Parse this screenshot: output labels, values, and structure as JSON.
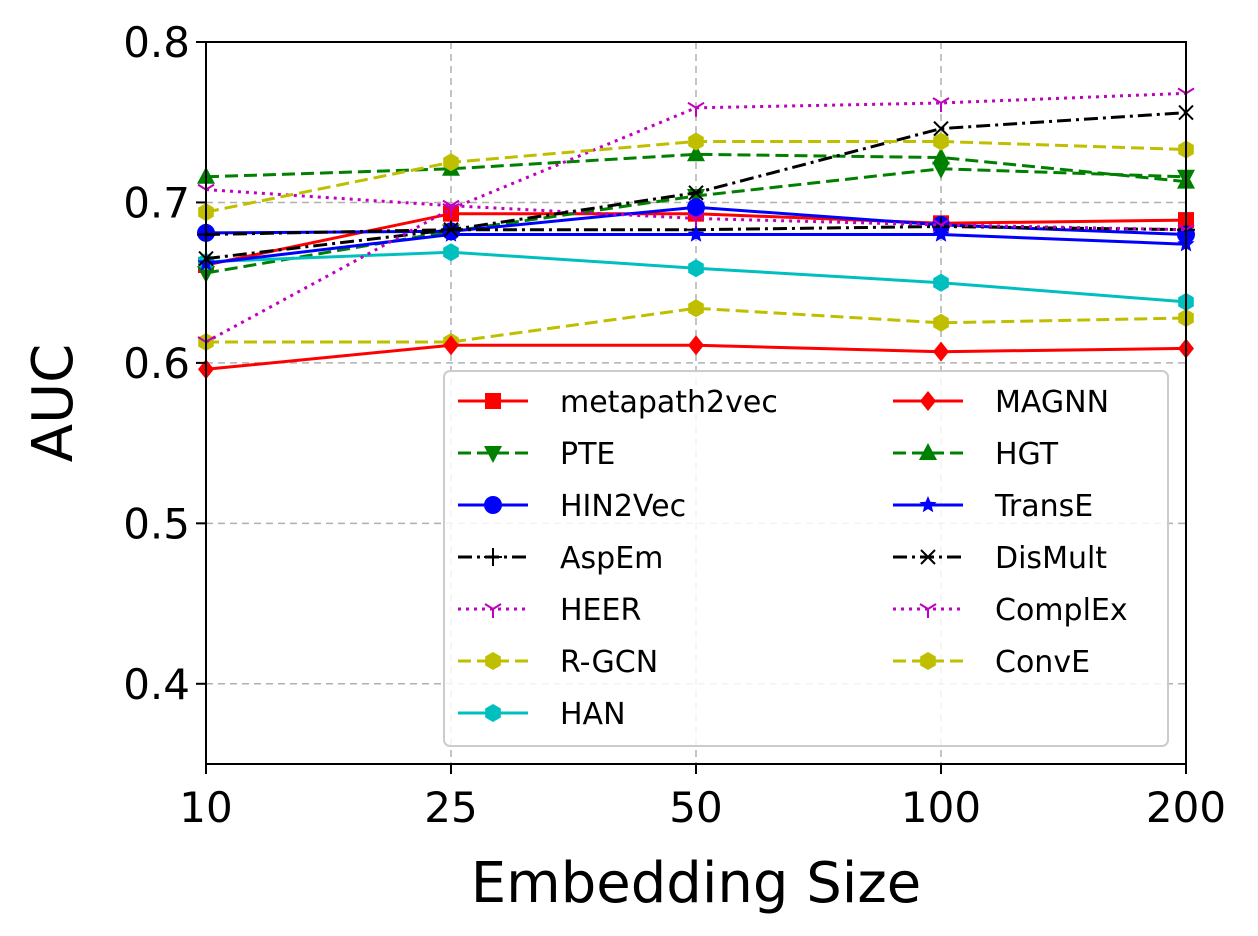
{
  "chart_data": {
    "type": "line",
    "title": "",
    "xlabel": "Embedding Size",
    "ylabel": "AUC",
    "categories": [
      "10",
      "25",
      "50",
      "100",
      "200"
    ],
    "ylim": [
      0.35,
      0.8
    ],
    "yticks": [
      "0.4",
      "0.5",
      "0.6",
      "0.7",
      "0.8"
    ],
    "grid": true,
    "legend_position": "lower-right",
    "legend_columns": 2,
    "series": [
      {
        "name": "metapath2vec",
        "values": [
          0.661,
          0.693,
          0.693,
          0.687,
          0.689
        ],
        "color": "#ff0000",
        "dash": "solid",
        "marker": "square"
      },
      {
        "name": "PTE",
        "values": [
          0.656,
          0.682,
          0.704,
          0.721,
          0.716
        ],
        "color": "#008000",
        "dash": "dashed",
        "marker": "triangle-down"
      },
      {
        "name": "HIN2Vec",
        "values": [
          0.681,
          0.682,
          0.697,
          0.686,
          0.68
        ],
        "color": "#0000ff",
        "dash": "solid",
        "marker": "circle"
      },
      {
        "name": "AspEm",
        "values": [
          0.68,
          0.683,
          0.683,
          0.685,
          0.683
        ],
        "color": "#000000",
        "dash": "dashdot",
        "marker": "plus"
      },
      {
        "name": "HEER",
        "values": [
          0.708,
          0.698,
          0.69,
          0.686,
          0.683
        ],
        "color": "#bf00bf",
        "dash": "dotted",
        "marker": "tri"
      },
      {
        "name": "R-GCN",
        "values": [
          0.613,
          0.613,
          0.634,
          0.625,
          0.628
        ],
        "color": "#bfbf00",
        "dash": "dashed",
        "marker": "hexagon"
      },
      {
        "name": "HAN",
        "values": [
          0.663,
          0.669,
          0.659,
          0.65,
          0.638
        ],
        "color": "#00bfbf",
        "dash": "solid",
        "marker": "hexagon"
      },
      {
        "name": "MAGNN",
        "values": [
          0.596,
          0.611,
          0.611,
          0.607,
          0.609
        ],
        "color": "#ff0000",
        "dash": "solid",
        "marker": "diamond"
      },
      {
        "name": "HGT",
        "values": [
          0.716,
          0.721,
          0.73,
          0.728,
          0.713
        ],
        "color": "#008000",
        "dash": "dashed",
        "marker": "triangle-up"
      },
      {
        "name": "TransE",
        "values": [
          0.662,
          0.68,
          0.68,
          0.68,
          0.674
        ],
        "color": "#0000ff",
        "dash": "solid",
        "marker": "star"
      },
      {
        "name": "DisMult",
        "values": [
          0.665,
          0.683,
          0.706,
          0.746,
          0.756
        ],
        "color": "#000000",
        "dash": "dashdot",
        "marker": "x"
      },
      {
        "name": "ComplEx",
        "values": [
          0.613,
          0.696,
          0.759,
          0.762,
          0.768
        ],
        "color": "#bf00bf",
        "dash": "dotted",
        "marker": "tri"
      },
      {
        "name": "ConvE",
        "values": [
          0.694,
          0.725,
          0.738,
          0.738,
          0.733
        ],
        "color": "#bfbf00",
        "dash": "dashed",
        "marker": "hexagon"
      }
    ]
  }
}
